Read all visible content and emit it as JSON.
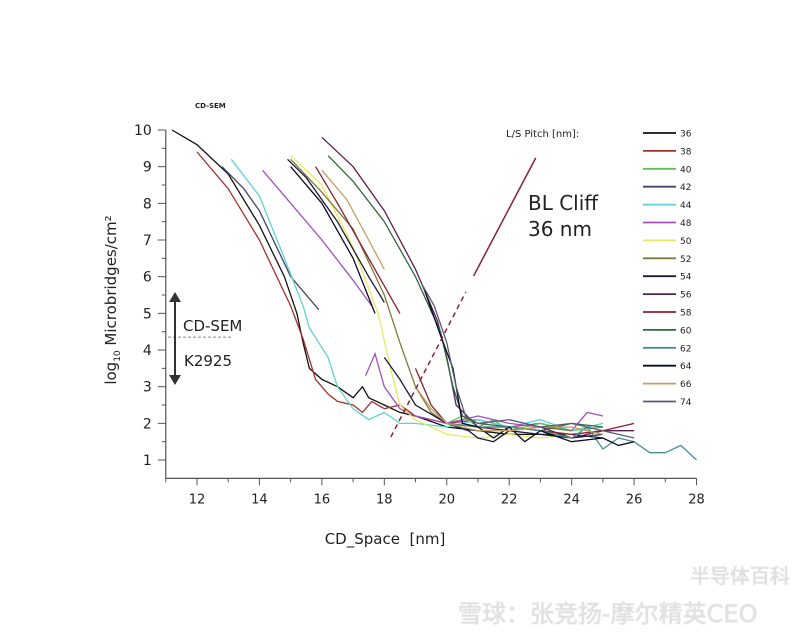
{
  "chart_data": {
    "type": "line",
    "top_label": "CD-SEM",
    "xlabel": "CD_Space  [nm]",
    "ylabel_prefix": "log",
    "ylabel_sub": "10",
    "ylabel_main": " Microbridges/cm²",
    "xlim": [
      11,
      28
    ],
    "ylim": [
      0.5,
      10
    ],
    "x_ticks": [
      12,
      14,
      16,
      18,
      20,
      22,
      24,
      26,
      28
    ],
    "y_ticks": [
      1,
      2,
      3,
      4,
      5,
      6,
      7,
      8,
      9,
      10
    ],
    "legend_title": "L/S Pitch [nm]:",
    "legend_position": "right",
    "annotations": {
      "cliff_line1": "BL Cliff",
      "cliff_line2": "36 nm",
      "cliff_solid": [
        [
          20.86,
          6.02
        ],
        [
          22.85,
          9.24
        ]
      ],
      "cliff_dashed": [
        [
          18.21,
          1.63
        ],
        [
          20.61,
          5.58
        ]
      ],
      "upper_region": "CD-SEM",
      "lower_region": "K2925",
      "region_divider_y": 4.35
    },
    "series": [
      {
        "name": "36",
        "color": "#111111",
        "points": [
          [
            11.2,
            10
          ],
          [
            12,
            9.6
          ],
          [
            13,
            8.8
          ],
          [
            14,
            7.4
          ],
          [
            14.8,
            6.0
          ],
          [
            15.2,
            5.0
          ],
          [
            15.4,
            4.2
          ],
          [
            15.6,
            3.5
          ],
          [
            16,
            3.2
          ],
          [
            16.5,
            3.0
          ],
          [
            17,
            2.7
          ],
          [
            17.3,
            3.0
          ],
          [
            17.5,
            2.7
          ],
          [
            18,
            2.5
          ],
          [
            18.5,
            2.3
          ],
          [
            19,
            2.2
          ],
          [
            20,
            1.9
          ],
          [
            21,
            1.8
          ],
          [
            22,
            1.7
          ],
          [
            23,
            1.7
          ],
          [
            24,
            1.7
          ],
          [
            25,
            1.6
          ]
        ]
      },
      {
        "name": "38",
        "color": "#a0302a",
        "points": [
          [
            12,
            9.4
          ],
          [
            13,
            8.4
          ],
          [
            14,
            7.0
          ],
          [
            15,
            5.2
          ],
          [
            15.4,
            4.3
          ],
          [
            15.8,
            3.2
          ],
          [
            16.2,
            2.8
          ],
          [
            16.5,
            2.6
          ],
          [
            17,
            2.5
          ],
          [
            17.3,
            2.3
          ],
          [
            17.6,
            2.6
          ],
          [
            18,
            2.4
          ],
          [
            18.5,
            2.5
          ],
          [
            19,
            2.2
          ],
          [
            20,
            2.0
          ],
          [
            21,
            2.1
          ],
          [
            22,
            1.9
          ],
          [
            23,
            2.0
          ],
          [
            24,
            1.8
          ]
        ]
      },
      {
        "name": "40",
        "color": "#5cbf5c",
        "points": [
          [
            19.5,
            2.4
          ],
          [
            20,
            2.0
          ],
          [
            20.5,
            2.2
          ],
          [
            21,
            1.9
          ],
          [
            21.5,
            2.1
          ],
          [
            22,
            1.8
          ],
          [
            23,
            2.0
          ],
          [
            24,
            1.8
          ],
          [
            25,
            1.9
          ]
        ]
      },
      {
        "name": "42",
        "color": "#44446a",
        "points": [
          [
            12.8,
            9.0
          ],
          [
            13.5,
            8.4
          ],
          [
            14,
            7.8
          ],
          [
            15,
            6.0
          ],
          [
            15.9,
            5.1
          ]
        ]
      },
      {
        "name": "44",
        "color": "#5fd3d3",
        "points": [
          [
            13.1,
            9.2
          ],
          [
            14,
            8.2
          ],
          [
            14.8,
            6.5
          ],
          [
            15.4,
            5.2
          ],
          [
            15.6,
            4.6
          ],
          [
            16.2,
            3.8
          ],
          [
            16.5,
            3.0
          ],
          [
            17,
            2.4
          ],
          [
            17.5,
            2.1
          ],
          [
            18,
            2.3
          ],
          [
            18.5,
            2.0
          ],
          [
            19,
            2.0
          ],
          [
            20,
            1.9
          ],
          [
            21,
            2.1
          ],
          [
            22,
            1.9
          ],
          [
            23,
            2.1
          ],
          [
            24,
            1.8
          ],
          [
            25,
            2.0
          ]
        ]
      },
      {
        "name": "48",
        "color": "#a050c0",
        "points": [
          [
            14.1,
            8.9
          ],
          [
            15,
            8.0
          ],
          [
            16,
            7.0
          ],
          [
            17,
            5.9
          ],
          [
            17.6,
            5.2
          ]
        ]
      },
      {
        "name": "48",
        "color": "#a050c0",
        "points": [
          [
            17.4,
            3.3
          ],
          [
            17.7,
            3.9
          ],
          [
            18,
            3.0
          ],
          [
            18.5,
            2.4
          ],
          [
            19,
            2.2
          ],
          [
            20,
            2.0
          ],
          [
            21,
            2.2
          ],
          [
            22,
            2.0
          ],
          [
            23,
            1.9
          ],
          [
            24,
            1.8
          ],
          [
            24.5,
            2.3
          ],
          [
            25,
            2.2
          ]
        ]
      },
      {
        "name": "50",
        "color": "#e8e860",
        "points": [
          [
            15,
            9.3
          ],
          [
            16,
            8.5
          ],
          [
            17,
            6.8
          ],
          [
            17.8,
            5.0
          ],
          [
            18.2,
            3.5
          ],
          [
            18.5,
            2.5
          ],
          [
            19,
            2.1
          ],
          [
            20,
            1.7
          ],
          [
            21,
            1.6
          ],
          [
            22,
            1.7
          ],
          [
            23,
            1.6
          ],
          [
            24,
            1.7
          ]
        ]
      },
      {
        "name": "52",
        "color": "#7f7a3a",
        "points": [
          [
            15,
            9.2
          ],
          [
            16,
            8.3
          ],
          [
            17,
            7.3
          ],
          [
            18,
            5.5
          ],
          [
            18.5,
            4.2
          ],
          [
            19,
            3.0
          ],
          [
            19.5,
            2.3
          ],
          [
            20,
            2.0
          ],
          [
            21,
            1.9
          ],
          [
            22,
            1.8
          ],
          [
            23,
            1.9
          ],
          [
            24,
            1.8
          ]
        ]
      },
      {
        "name": "54",
        "color": "#1a1a3a",
        "points": [
          [
            14.9,
            9.2
          ],
          [
            15.5,
            8.7
          ],
          [
            16.5,
            7.5
          ],
          [
            17.5,
            6.0
          ],
          [
            18,
            5.3
          ]
        ]
      },
      {
        "name": "54",
        "color": "#1a1a3a",
        "points": [
          [
            18.0,
            3.8
          ],
          [
            18.5,
            3.2
          ],
          [
            19,
            2.5
          ],
          [
            20,
            2.0
          ],
          [
            20.7,
            1.8
          ],
          [
            21,
            1.6
          ],
          [
            21.5,
            1.5
          ],
          [
            22,
            1.8
          ],
          [
            23,
            1.7
          ],
          [
            24,
            1.6
          ],
          [
            25,
            1.7
          ]
        ]
      },
      {
        "name": "56",
        "color": "#5a2050",
        "points": [
          [
            16,
            9.8
          ],
          [
            17,
            9.0
          ],
          [
            18,
            7.8
          ],
          [
            19,
            6.2
          ],
          [
            19.7,
            4.8
          ],
          [
            20,
            3.8
          ],
          [
            20.3,
            2.5
          ],
          [
            21,
            1.9
          ],
          [
            22,
            1.8
          ],
          [
            23,
            1.9
          ],
          [
            24,
            1.6
          ],
          [
            25,
            1.8
          ],
          [
            26,
            1.8
          ]
        ]
      },
      {
        "name": "58",
        "color": "#8a2030",
        "points": [
          [
            15.8,
            9.0
          ],
          [
            16.5,
            8.0
          ],
          [
            17.5,
            6.5
          ],
          [
            18.5,
            5.0
          ]
        ]
      },
      {
        "name": "58",
        "color": "#8a2030",
        "points": [
          [
            19,
            3.5
          ],
          [
            19.5,
            2.5
          ],
          [
            20,
            2.0
          ],
          [
            21,
            1.9
          ],
          [
            22,
            1.9
          ],
          [
            23,
            1.8
          ],
          [
            24,
            1.7
          ],
          [
            25,
            1.8
          ],
          [
            26,
            2.0
          ]
        ]
      },
      {
        "name": "60",
        "color": "#2e6a3a",
        "points": [
          [
            16.2,
            9.3
          ],
          [
            17,
            8.6
          ],
          [
            18,
            7.5
          ],
          [
            19,
            6.0
          ],
          [
            19.8,
            4.5
          ],
          [
            20.2,
            3.0
          ],
          [
            20.5,
            2.2
          ],
          [
            21,
            2.0
          ],
          [
            22,
            1.9
          ],
          [
            23,
            1.8
          ],
          [
            24,
            2.0
          ],
          [
            25,
            1.9
          ]
        ]
      },
      {
        "name": "62",
        "color": "#4a9090",
        "points": [
          [
            20,
            2.0
          ],
          [
            21,
            1.9
          ],
          [
            22,
            1.9
          ],
          [
            23,
            1.8
          ],
          [
            24,
            1.6
          ],
          [
            24.5,
            1.9
          ],
          [
            25,
            1.3
          ],
          [
            25.5,
            1.6
          ],
          [
            26,
            1.5
          ],
          [
            26.5,
            1.2
          ],
          [
            27,
            1.2
          ],
          [
            27.5,
            1.4
          ],
          [
            28,
            1.0
          ]
        ]
      },
      {
        "name": "64",
        "color": "#0a0a2a",
        "points": [
          [
            15,
            9.0
          ],
          [
            16,
            8.0
          ],
          [
            17,
            6.5
          ],
          [
            17.7,
            5.0
          ]
        ]
      },
      {
        "name": "64",
        "color": "#0a0a2a",
        "points": [
          [
            19.3,
            5.6
          ],
          [
            19.8,
            4.4
          ],
          [
            20.2,
            3.5
          ],
          [
            20.5,
            2.0
          ],
          [
            21,
            1.9
          ],
          [
            21.5,
            1.6
          ],
          [
            22,
            1.9
          ],
          [
            22.5,
            1.5
          ],
          [
            23,
            1.8
          ],
          [
            24,
            1.5
          ],
          [
            25,
            1.6
          ],
          [
            25.5,
            1.4
          ],
          [
            26,
            1.5
          ]
        ]
      },
      {
        "name": "66",
        "color": "#c0a060",
        "points": [
          [
            16,
            8.9
          ],
          [
            16.8,
            8.1
          ],
          [
            17.5,
            7.0
          ],
          [
            18,
            6.2
          ]
        ]
      },
      {
        "name": "66",
        "color": "#c0a060",
        "points": [
          [
            19,
            3.0
          ],
          [
            19.5,
            2.4
          ],
          [
            20,
            2.0
          ],
          [
            21,
            1.8
          ],
          [
            22,
            1.8
          ],
          [
            23,
            1.9
          ],
          [
            24,
            1.9
          ],
          [
            25,
            1.7
          ]
        ]
      },
      {
        "name": "74",
        "color": "#5a5a78",
        "points": [
          [
            19.2,
            5.8
          ],
          [
            19.6,
            5.2
          ],
          [
            20,
            4.2
          ],
          [
            20.3,
            3.0
          ],
          [
            20.6,
            2.2
          ],
          [
            21,
            2.0
          ],
          [
            22,
            2.1
          ],
          [
            23,
            1.9
          ],
          [
            24,
            2.0
          ],
          [
            25,
            1.8
          ],
          [
            26,
            1.6
          ]
        ]
      }
    ],
    "legend": [
      {
        "label": "36",
        "color": "#111111"
      },
      {
        "label": "38",
        "color": "#a0302a"
      },
      {
        "label": "40",
        "color": "#5cbf5c"
      },
      {
        "label": "42",
        "color": "#44446a"
      },
      {
        "label": "44",
        "color": "#5fd3d3"
      },
      {
        "label": "48",
        "color": "#a050c0"
      },
      {
        "label": "50",
        "color": "#e8e860"
      },
      {
        "label": "52",
        "color": "#7f7a3a"
      },
      {
        "label": "54",
        "color": "#1a1a3a"
      },
      {
        "label": "56",
        "color": "#5a2050"
      },
      {
        "label": "58",
        "color": "#8a2030"
      },
      {
        "label": "60",
        "color": "#2e6a3a"
      },
      {
        "label": "62",
        "color": "#4a9090"
      },
      {
        "label": "64",
        "color": "#0a0a2a"
      },
      {
        "label": "66",
        "color": "#c0a060"
      },
      {
        "label": "74",
        "color": "#5a5a78"
      }
    ]
  },
  "watermark": {
    "line1": "半导体百科",
    "line2": "雪球：张竞扬-摩尔精英CEO"
  }
}
